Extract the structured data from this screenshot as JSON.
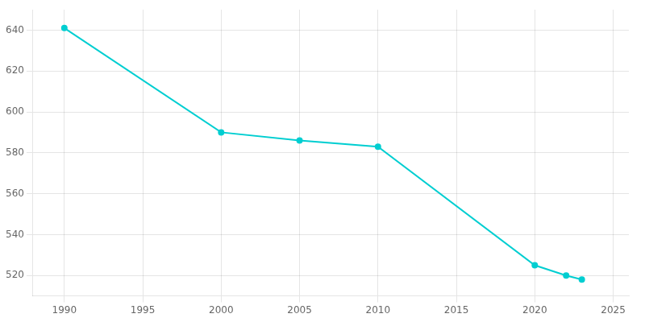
{
  "chart_data": {
    "type": "line",
    "x": [
      1990,
      2000,
      2005,
      2010,
      2020,
      2022,
      2023
    ],
    "values": [
      641,
      590,
      586,
      583,
      525,
      520,
      518
    ],
    "color": "#00CED1",
    "marker": "circle",
    "xlim": [
      1988,
      2026
    ],
    "ylim": [
      510,
      650
    ],
    "xticks": [
      1990,
      1995,
      2000,
      2005,
      2010,
      2015,
      2020,
      2025
    ],
    "yticks": [
      520,
      540,
      560,
      580,
      600,
      620,
      640
    ],
    "grid": true
  }
}
